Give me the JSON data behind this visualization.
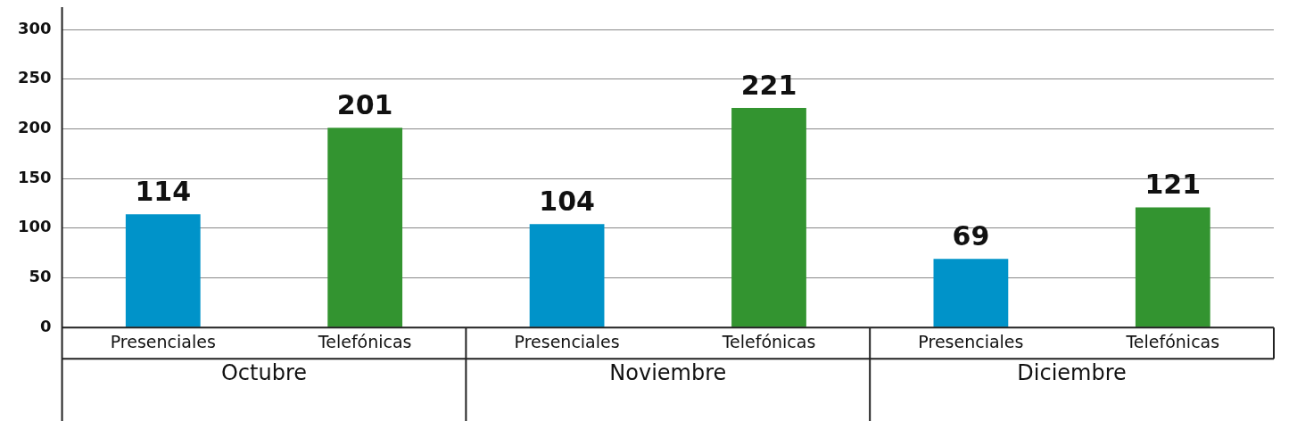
{
  "chart_data": {
    "type": "bar",
    "categories": [
      "Octubre",
      "Noviembre",
      "Diciembre"
    ],
    "series": [
      {
        "name": "Presenciales",
        "color": "#0093c9",
        "values": [
          114,
          104,
          69
        ]
      },
      {
        "name": "Telefónicas",
        "color": "#339430",
        "values": [
          201,
          221,
          121
        ]
      }
    ],
    "ylim": [
      0,
      300
    ],
    "yticks": [
      0,
      50,
      100,
      150,
      200,
      250,
      300
    ],
    "grid": "y",
    "legend": false,
    "data_labels": true
  }
}
